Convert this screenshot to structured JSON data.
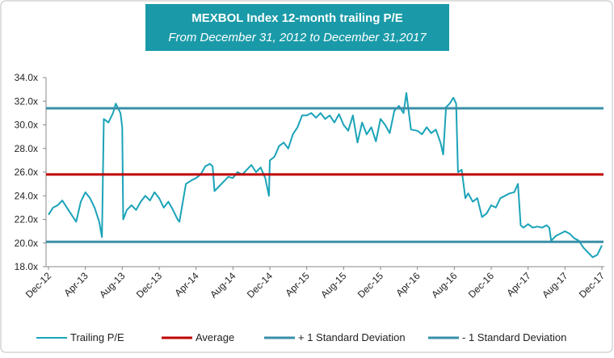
{
  "chart_data": {
    "type": "line",
    "title": "MEXBOL Index 12-month trailing P/E",
    "subtitle": "From December 31, 2012 to December 31,2017",
    "xlim": [
      0,
      60
    ],
    "xticks": [
      {
        "value": 0,
        "label": "Dec-12"
      },
      {
        "value": 4,
        "label": "Apr-13"
      },
      {
        "value": 8,
        "label": "Aug-13"
      },
      {
        "value": 12,
        "label": "Dec-13"
      },
      {
        "value": 16,
        "label": "Apr-14"
      },
      {
        "value": 20,
        "label": "Aug-14"
      },
      {
        "value": 24,
        "label": "Dec-14"
      },
      {
        "value": 28,
        "label": "Apr-15"
      },
      {
        "value": 32,
        "label": "Aug-15"
      },
      {
        "value": 36,
        "label": "Dec-15"
      },
      {
        "value": 40,
        "label": "Apr-16"
      },
      {
        "value": 44,
        "label": "Aug-16"
      },
      {
        "value": 48,
        "label": "Dec-16"
      },
      {
        "value": 52,
        "label": "Apr-17"
      },
      {
        "value": 56,
        "label": "Aug-17"
      },
      {
        "value": 60,
        "label": "Dec-17"
      }
    ],
    "ylim": [
      18,
      34
    ],
    "yticks": [
      {
        "value": 18,
        "label": "18.0x"
      },
      {
        "value": 20,
        "label": "20.0x"
      },
      {
        "value": 22,
        "label": "22.0x"
      },
      {
        "value": 24,
        "label": "24.0x"
      },
      {
        "value": 26,
        "label": "26.0x"
      },
      {
        "value": 28,
        "label": "28.0x"
      },
      {
        "value": 30,
        "label": "30.0x"
      },
      {
        "value": 32,
        "label": "32.0x"
      },
      {
        "value": 34,
        "label": "34.0x"
      }
    ],
    "series": [
      {
        "name": "Trailing P/E",
        "color": "#1ba3b8",
        "x": [
          0,
          0.5,
          1,
          1.5,
          2,
          2.5,
          3,
          3.5,
          4,
          4.5,
          5,
          5.5,
          5.8,
          6,
          6.5,
          7,
          7.3,
          7.8,
          8,
          8.1,
          8.5,
          9,
          9.5,
          10,
          10.5,
          11,
          11.5,
          12,
          12.5,
          13,
          13.5,
          14,
          14.2,
          14.9,
          15.5,
          16,
          16.5,
          17,
          17.5,
          17.8,
          18,
          18.5,
          19,
          19.5,
          20,
          20.5,
          21,
          21.5,
          22,
          22.5,
          23,
          23.5,
          23.9,
          24,
          24.5,
          25,
          25.5,
          26,
          26.5,
          27,
          27.5,
          28,
          28.5,
          29,
          29.5,
          30,
          30.5,
          31,
          31.5,
          32,
          32.5,
          33,
          33.5,
          34,
          34.5,
          35,
          35.5,
          36,
          36.5,
          37,
          37.5,
          38,
          38.5,
          38.8,
          39.3,
          40,
          40.5,
          41,
          41.5,
          42,
          42.5,
          42.8,
          43.1,
          43.5,
          43.9,
          44.2,
          44.4,
          44.8,
          45.2,
          45.5,
          46,
          46.5,
          47,
          47.5,
          48,
          48.5,
          49,
          49.5,
          50,
          50.5,
          50.9,
          51.2,
          51.5,
          52,
          52.5,
          53,
          53.5,
          54,
          54.3,
          54.5,
          55,
          55.5,
          56,
          56.5,
          57,
          57.5,
          58,
          58.5,
          59,
          59.5,
          60
        ],
        "values": [
          22.4,
          23.0,
          23.2,
          23.6,
          23.0,
          22.4,
          21.8,
          23.5,
          24.3,
          23.8,
          23.0,
          21.8,
          20.5,
          30.5,
          30.2,
          31.0,
          31.8,
          31.0,
          29.8,
          22.0,
          22.8,
          23.2,
          22.8,
          23.5,
          24.0,
          23.6,
          24.3,
          23.8,
          23.0,
          23.5,
          22.8,
          22.0,
          21.8,
          25.0,
          25.3,
          25.5,
          25.8,
          26.5,
          26.7,
          26.5,
          24.4,
          24.8,
          25.2,
          25.6,
          25.5,
          26.0,
          25.8,
          26.2,
          26.6,
          26.0,
          26.4,
          25.5,
          24.0,
          27.0,
          27.3,
          28.2,
          28.5,
          28.0,
          29.2,
          29.8,
          30.8,
          30.8,
          31.0,
          30.6,
          31.0,
          30.5,
          30.8,
          30.2,
          30.9,
          30.0,
          29.5,
          30.8,
          28.5,
          30.2,
          29.2,
          29.8,
          28.6,
          30.5,
          30.0,
          29.3,
          31.2,
          31.6,
          31.0,
          32.7,
          29.6,
          29.5,
          29.2,
          29.8,
          29.3,
          29.6,
          28.5,
          27.5,
          31.5,
          31.8,
          32.3,
          31.8,
          26.0,
          26.2,
          23.8,
          24.2,
          23.5,
          23.8,
          22.2,
          22.5,
          23.2,
          23.0,
          23.8,
          24.0,
          24.2,
          24.3,
          25.0,
          21.5,
          21.3,
          21.6,
          21.3,
          21.4,
          21.3,
          21.5,
          21.3,
          20.2,
          20.6,
          20.8,
          21.0,
          20.8,
          20.4,
          20.2,
          19.6,
          19.2,
          18.8,
          19.0,
          19.8
        ]
      }
    ],
    "hlines": [
      {
        "name": "Average",
        "color": "#c00000",
        "value": 25.8
      },
      {
        "name": "+ 1 Standard Deviation",
        "color": "#3a8fa8",
        "value": 31.4
      },
      {
        "name": "- 1 Standard Deviation",
        "color": "#3a8fa8",
        "value": 20.1
      }
    ]
  }
}
